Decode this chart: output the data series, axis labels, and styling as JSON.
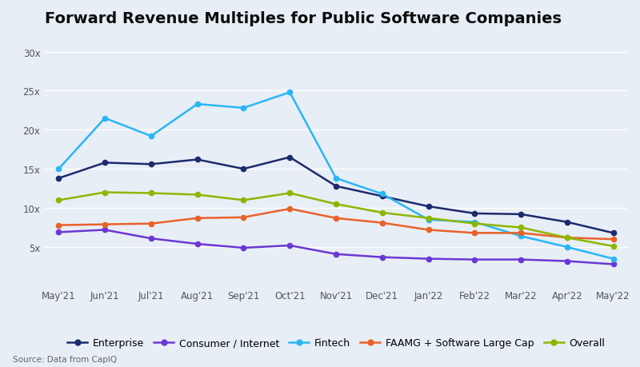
{
  "title": "Forward Revenue Multiples for Public Software Companies",
  "source": "Source: Data from CapIQ",
  "x_labels": [
    "May'21",
    "Jun'21",
    "Jul'21",
    "Aug'21",
    "Sep'21",
    "Oct'21",
    "Nov'21",
    "Dec'21",
    "Jan'22",
    "Feb'22",
    "Mar'22",
    "Apr'22",
    "May'22"
  ],
  "series": {
    "Enterprise": {
      "values": [
        13.8,
        15.8,
        15.6,
        16.2,
        15.0,
        16.5,
        12.8,
        11.5,
        10.2,
        9.3,
        9.2,
        8.2,
        6.8
      ],
      "color": "#1c2b6e",
      "marker": "o"
    },
    "Consumer / Internet": {
      "values": [
        6.9,
        7.2,
        6.1,
        5.4,
        4.9,
        5.2,
        4.1,
        3.7,
        3.5,
        3.4,
        3.4,
        3.2,
        2.8
      ],
      "color": "#6b38d4",
      "marker": "o"
    },
    "Fintech": {
      "values": [
        15.0,
        21.5,
        19.2,
        23.3,
        22.8,
        24.8,
        13.8,
        11.8,
        8.5,
        8.2,
        6.4,
        5.0,
        3.5
      ],
      "color": "#29b6f6",
      "marker": "o"
    },
    "FAAMG + Software Large Cap": {
      "values": [
        7.8,
        7.9,
        8.0,
        8.7,
        8.8,
        9.9,
        8.7,
        8.1,
        7.2,
        6.8,
        6.8,
        6.2,
        6.0
      ],
      "color": "#e8622a",
      "marker": "o"
    },
    "Overall": {
      "values": [
        11.0,
        12.0,
        11.9,
        11.7,
        11.0,
        11.9,
        10.5,
        9.4,
        8.7,
        8.0,
        7.5,
        6.2,
        5.1
      ],
      "color": "#8db600",
      "marker": "o"
    }
  },
  "ylim": [
    0,
    32
  ],
  "yticks": [
    5,
    10,
    15,
    20,
    25,
    30
  ],
  "ytick_labels": [
    "5x",
    "10x",
    "15x",
    "20x",
    "25x",
    "30x"
  ],
  "background_color": "#e8eef5",
  "grid_color": "#ffffff",
  "title_fontsize": 14,
  "legend_fontsize": 9,
  "tick_fontsize": 8.5
}
